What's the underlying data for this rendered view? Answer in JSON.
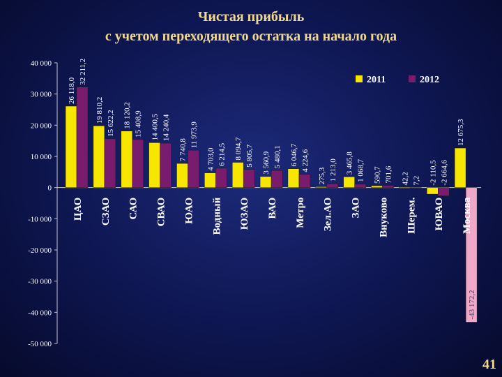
{
  "slide": {
    "title_line1": "Чистая прибыль",
    "title_line2": "с учетом переходящего остатка на начало года",
    "page_number": "41"
  },
  "colors": {
    "series_2011": "#f6e600",
    "series_2012": "#7a1c6e",
    "moscow_2012": "#f0a8c8",
    "text": "#ffffff",
    "title": "#f2d88a"
  },
  "chart_data": {
    "type": "bar",
    "title": "",
    "xlabel": "",
    "ylabel": "",
    "ylim": [
      -50000,
      40000
    ],
    "yticks": [
      40000,
      30000,
      20000,
      10000,
      0,
      -10000,
      -20000,
      -30000,
      -40000,
      -50000
    ],
    "ytick_labels": [
      "40 000",
      "30 000",
      "20 000",
      "10 000",
      "0",
      "-10 000",
      "-20 000",
      "-30 000",
      "-40 000",
      "-50 000"
    ],
    "grid": false,
    "legend_position": "top-right",
    "categories": [
      "ЦАО",
      "СЗАО",
      "САО",
      "СВАО",
      "ЮАО",
      "Водный",
      "ЮЗАО",
      "ВАО",
      "Метро",
      "Зел.АО",
      "ЗАО",
      "Внуково",
      "Шерем.",
      "ЮВАО",
      "Москва"
    ],
    "series": [
      {
        "name": "2011",
        "values": [
          26118.0,
          19810.2,
          18120.2,
          14400.5,
          7740.8,
          4703.0,
          8094.7,
          3560.9,
          6046.7,
          275.3,
          3465.8,
          590.7,
          42.2,
          -2110.5,
          12675.3
        ],
        "labels": [
          "26 118,0",
          "19 810,2",
          "18 120,2",
          "14 400,5",
          "7 740,8",
          "4 703,0",
          "8 094,7",
          "3 560,9",
          "6 046,7",
          "275,3",
          "3 465,8",
          "590,7",
          "42,2",
          "-2 110,5",
          "12 675,3"
        ]
      },
      {
        "name": "2012",
        "values": [
          32211.2,
          15622.2,
          15408.9,
          14240.4,
          11973.9,
          6214.5,
          5805.7,
          5480.1,
          4224.6,
          1213.0,
          1068.7,
          701.6,
          7.2,
          -2664.6,
          -43172.2
        ],
        "labels": [
          "32 211,2",
          "15 622,2",
          "15 408,9",
          "14 240,4",
          "11 973,9",
          "6 214,5",
          "5 805,7",
          "5 480,1",
          "4 224,6",
          "1 213,0",
          "1 068,7",
          "701,6",
          "7,2",
          "-2 664,6",
          "-43 172,2"
        ]
      }
    ]
  }
}
